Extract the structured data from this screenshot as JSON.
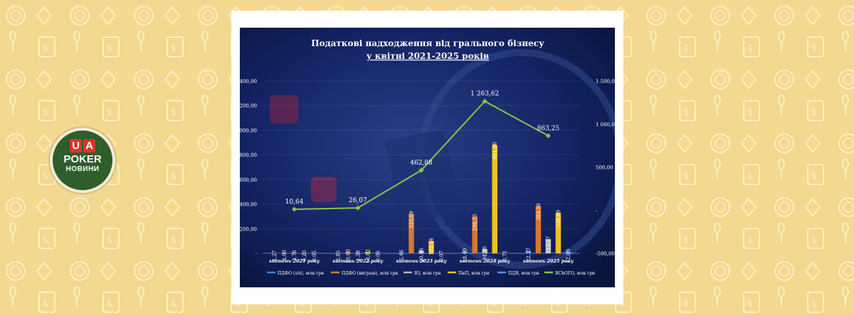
{
  "logo": {
    "line1": "UA",
    "line2": "POKER",
    "line3": "НОВИНИ"
  },
  "chart_data": {
    "type": "bar",
    "title_line1": "Податкові надходження від грального бізнесу",
    "title_line2": "у квітні 2021-2025 років",
    "categories": [
      "квітень 2021 року",
      "квітень 2022 року",
      "квітень 2023 року",
      "квітень 2024 року",
      "квітень 2025 року"
    ],
    "left_axis_ticks": [
      "-",
      "200,00",
      "400,00",
      "600,00",
      "800,00",
      "000,00",
      "200,00",
      "400,00"
    ],
    "right_axis_ticks": [
      "-500,00",
      "-",
      "500,00",
      "1 000,00",
      "1 500,00"
    ],
    "ylim_left": [
      0,
      1400
    ],
    "ylim_right": [
      -500,
      1500
    ],
    "series": [
      {
        "name": "ПДФО (з/п), млн грн",
        "axis": "left",
        "color": "#3f7fd8",
        "values": [
          1.27,
          2.85,
          5.46,
          18.4,
          22.27
        ],
        "labels": [
          "1,27",
          "2,85",
          "5,46",
          "18,40",
          "22,27"
        ]
      },
      {
        "name": "ПДФО (виграш), млн грн",
        "axis": "left",
        "color": "#d9772e",
        "values": [
          4.9,
          10.8,
          320.09,
          298.55,
          384.5
        ],
        "labels": [
          "4,90",
          "10,80",
          "320,09",
          "298,55",
          "384,50"
        ]
      },
      {
        "name": "ВЗ, млн грн",
        "axis": "left",
        "color": "#b8b8b8",
        "values": [
          3.76,
          1.38,
          20.06,
          34.5,
          115.57
        ],
        "labels": [
          "3,76",
          "1,38",
          "20,06",
          "34,50",
          "115,57"
        ]
      },
      {
        "name": "ПнП, млн грн",
        "axis": "left",
        "color": "#f2c01c",
        "values": [
          0.2,
          10.82,
          102.14,
          881.06,
          328.69
        ],
        "labels": [
          "0,20",
          "10,82",
          "102,14",
          "881,06",
          "328,69"
        ]
      },
      {
        "name": "ПДВ, млн грн",
        "axis": "left",
        "color": "#5b8fe0",
        "values": [
          0.05,
          0.06,
          0.07,
          0.71,
          12.09
        ],
        "labels": [
          "0,05",
          "0,06",
          "0,07",
          "0,71",
          "12,09"
        ]
      }
    ],
    "total_series": {
      "name": "ВСЬОГО, млн грн",
      "axis": "right",
      "color": "#8bc34a",
      "values": [
        10.64,
        26.07,
        462.88,
        1263.62,
        863.25
      ],
      "labels": [
        "10,64",
        "26,07",
        "462,88",
        "1 263,62",
        "863,25"
      ]
    },
    "legend_position": "bottom",
    "colors": {
      "background": "#0c1a4e",
      "title": "#ffffff",
      "page_background": "#f3d890",
      "logo_green": "#2f5d2b",
      "logo_red": "#d8362b"
    }
  }
}
